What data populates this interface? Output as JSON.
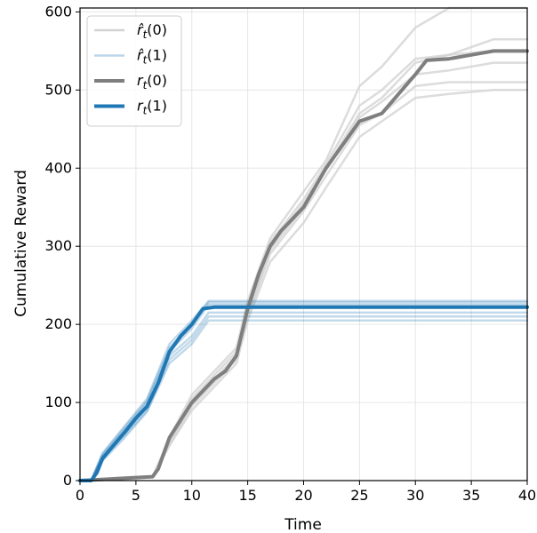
{
  "chart_data": {
    "type": "line",
    "title": "",
    "xlabel": "Time",
    "ylabel": "Cumulative Reward",
    "xlim": [
      0,
      40
    ],
    "ylim": [
      0,
      605
    ],
    "xticks": [
      0,
      5,
      10,
      15,
      20,
      25,
      30,
      35,
      40
    ],
    "yticks": [
      0,
      100,
      200,
      300,
      400,
      500,
      600
    ],
    "grid": true,
    "legend_position": "top-left",
    "legend": [
      {
        "label": "r̂t(0)",
        "base": "r̂",
        "sub": "t",
        "arg": "(0)",
        "color": "#d3d3d3",
        "width": 2.5,
        "opacity": 1.0
      },
      {
        "label": "r̂t(1)",
        "base": "r̂",
        "sub": "t",
        "arg": "(1)",
        "color": "#1f77b4",
        "width": 2.5,
        "opacity": 0.3
      },
      {
        "label": "rt(0)",
        "base": "r",
        "sub": "t",
        "arg": "(0)",
        "color": "#7f7f7f",
        "width": 4,
        "opacity": 1.0
      },
      {
        "label": "rt(1)",
        "base": "r",
        "sub": "t",
        "arg": "(1)",
        "color": "#1f77b4",
        "width": 4,
        "opacity": 1.0
      }
    ],
    "series_groups": [
      {
        "legend": "r̂t(0)",
        "style": "estimate",
        "color": "#d3d3d3",
        "opacity": 0.8,
        "width": 2.5,
        "series": [
          {
            "x": [
              0,
              6.5,
              8,
              10,
              12,
              14,
              15,
              17,
              20,
              22,
              25,
              27,
              30,
              33,
              37,
              40
            ],
            "y": [
              0,
              5,
              55,
              110,
              140,
              170,
              230,
              310,
              370,
              410,
              505,
              530,
              580,
              605,
              605,
              605
            ]
          },
          {
            "x": [
              0,
              6.5,
              8,
              10,
              12,
              14,
              15,
              17,
              20,
              22,
              25,
              27,
              30,
              33,
              37,
              40
            ],
            "y": [
              0,
              5,
              50,
              100,
              130,
              160,
              215,
              295,
              350,
              400,
              470,
              490,
              535,
              545,
              565,
              565
            ]
          },
          {
            "x": [
              0,
              6.5,
              8,
              10,
              12,
              14,
              15,
              17,
              20,
              22,
              25,
              27,
              30,
              33,
              37,
              40
            ],
            "y": [
              0,
              5,
              45,
              95,
              125,
              155,
              210,
              290,
              345,
              390,
              455,
              470,
              505,
              510,
              510,
              510
            ]
          },
          {
            "x": [
              0,
              6.5,
              8,
              10,
              12,
              14,
              15,
              17,
              20,
              22,
              25,
              27,
              30,
              33,
              37,
              40
            ],
            "y": [
              0,
              5,
              45,
              90,
              120,
              150,
              205,
              280,
              330,
              375,
              440,
              460,
              490,
              495,
              500,
              500
            ]
          },
          {
            "x": [
              0,
              6.5,
              8,
              10,
              12,
              14,
              15,
              17,
              20,
              22,
              25,
              27,
              30,
              33,
              37,
              40
            ],
            "y": [
              0,
              5,
              50,
              105,
              135,
              165,
              220,
              305,
              360,
              405,
              480,
              500,
              540,
              545,
              550,
              550
            ]
          },
          {
            "x": [
              0,
              6.5,
              8,
              10,
              12,
              14,
              15,
              17,
              20,
              22,
              25,
              27,
              30,
              33,
              37,
              40
            ],
            "y": [
              0,
              5,
              48,
              98,
              128,
              158,
              212,
              300,
              355,
              398,
              465,
              485,
              520,
              525,
              535,
              535
            ]
          }
        ]
      },
      {
        "legend": "r̂t(1)",
        "style": "estimate",
        "color": "#1f77b4",
        "opacity": 0.28,
        "width": 2.5,
        "series": [
          {
            "x": [
              0,
              1,
              2,
              4,
              6,
              8,
              10,
              11.5,
              40
            ],
            "y": [
              0,
              0,
              35,
              70,
              105,
              175,
              205,
              230,
              230
            ]
          },
          {
            "x": [
              0,
              1,
              2,
              4,
              6,
              8,
              10,
              11.5,
              40
            ],
            "y": [
              0,
              0,
              32,
              65,
              100,
              165,
              195,
              225,
              225
            ]
          },
          {
            "x": [
              0,
              1,
              2,
              4,
              6,
              8,
              10,
              11.5,
              40
            ],
            "y": [
              0,
              0,
              30,
              60,
              95,
              160,
              185,
              215,
              215
            ]
          },
          {
            "x": [
              0,
              1,
              2,
              4,
              6,
              8,
              10,
              11.5,
              40
            ],
            "y": [
              0,
              0,
              28,
              58,
              90,
              155,
              180,
              210,
              210
            ]
          },
          {
            "x": [
              0,
              1,
              2,
              4,
              6,
              8,
              10,
              11.5,
              40
            ],
            "y": [
              0,
              0,
              25,
              55,
              88,
              150,
              175,
              205,
              205
            ]
          },
          {
            "x": [
              0,
              1,
              2,
              4,
              6,
              8,
              10,
              11.5,
              40
            ],
            "y": [
              0,
              0,
              33,
              68,
              102,
              170,
              200,
              228,
              228
            ]
          }
        ]
      },
      {
        "legend": "rt(0)",
        "style": "actual",
        "color": "#7f7f7f",
        "opacity": 1.0,
        "width": 4,
        "series": [
          {
            "x": [
              0,
              6.5,
              7,
              8,
              10,
              12,
              13,
              14,
              15,
              16,
              17,
              18,
              20,
              22,
              24,
              25,
              27,
              30,
              31,
              33,
              35,
              37,
              40
            ],
            "y": [
              0,
              5,
              15,
              55,
              100,
              130,
              140,
              160,
              220,
              265,
              300,
              320,
              350,
              400,
              440,
              460,
              470,
              520,
              538,
              540,
              545,
              550,
              550
            ]
          }
        ]
      },
      {
        "legend": "rt(1)",
        "style": "actual",
        "color": "#1f77b4",
        "opacity": 1.0,
        "width": 4,
        "series": [
          {
            "x": [
              0,
              1,
              1.5,
              2,
              3,
              4,
              5,
              6,
              7,
              8,
              9,
              10,
              11,
              12,
              40
            ],
            "y": [
              0,
              0,
              10,
              28,
              45,
              62,
              80,
              95,
              125,
              165,
              185,
              200,
              220,
              222,
              222
            ]
          }
        ]
      }
    ]
  }
}
